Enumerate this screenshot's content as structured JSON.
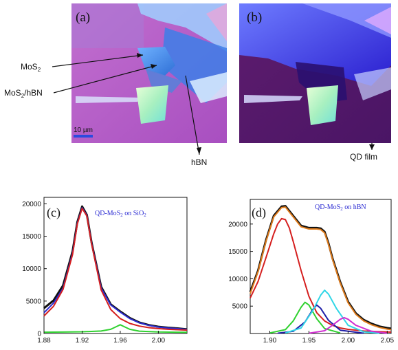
{
  "figure": {
    "panel_a": {
      "label": "(a)",
      "annotations": {
        "mos2": {
          "base": "MoS",
          "sub": "2"
        },
        "mos2_hbn": {
          "base": "MoS",
          "sub": "2",
          "suffix": "/hBN"
        },
        "hbn": "hBN",
        "scalebar": "10 µm"
      }
    },
    "panel_b": {
      "label": "(b)",
      "annotations": {
        "qd_film": "QD film"
      }
    },
    "colors": {
      "substrate_a": "#b75cc6",
      "substrate_b": "#5a1a6a",
      "flake_blue": "#2f6fd6",
      "black_data": "#111111",
      "blue_fit": "#2b2bd2",
      "red_fit": "#d51f1f",
      "green_fit": "#2fd12f",
      "cyan_fit": "#2fd6e6",
      "navy_fit": "#1f1fa8",
      "magenta_fit": "#d12fd1",
      "orange_sum": "#e07b1a"
    }
  },
  "chart_data": [
    {
      "type": "line",
      "panel_label": "(c)",
      "title": {
        "base": "QD-MoS",
        "sub": "2",
        "suffix": " on SiO",
        "sub2": "2"
      },
      "xlabel": "",
      "ylabel": "",
      "xlim": [
        1.88,
        2.03
      ],
      "ylim": [
        0,
        21000
      ],
      "x_ticks": [
        "1.88",
        "1.92",
        "1.96",
        "2.00"
      ],
      "x_tick_values": [
        1.88,
        1.92,
        1.96,
        2.0
      ],
      "y_ticks": [
        "0",
        "5000",
        "10000",
        "15000",
        "20000"
      ],
      "y_tick_values": [
        0,
        5000,
        10000,
        15000,
        20000
      ],
      "series": [
        {
          "color": "#111111",
          "x": [
            1.88,
            1.89,
            1.9,
            1.91,
            1.915,
            1.92,
            1.925,
            1.93,
            1.94,
            1.95,
            1.96,
            1.97,
            1.98,
            1.99,
            2.0,
            2.01,
            2.02,
            2.03
          ],
          "y": [
            3900,
            5100,
            7400,
            12700,
            17200,
            19600,
            18300,
            14000,
            7200,
            4500,
            3400,
            2400,
            1700,
            1300,
            1050,
            900,
            800,
            650
          ]
        },
        {
          "color": "#2b2bd2",
          "x": [
            1.88,
            1.89,
            1.9,
            1.91,
            1.915,
            1.92,
            1.925,
            1.93,
            1.94,
            1.95,
            1.96,
            1.97,
            1.98,
            1.99,
            2.0,
            2.01,
            2.02,
            2.03
          ],
          "y": [
            3200,
            4700,
            7000,
            12400,
            17000,
            19400,
            18200,
            13900,
            7000,
            4400,
            3300,
            2300,
            1650,
            1250,
            1000,
            850,
            750,
            600
          ]
        },
        {
          "color": "#d51f1f",
          "x": [
            1.88,
            1.89,
            1.9,
            1.91,
            1.915,
            1.92,
            1.925,
            1.93,
            1.94,
            1.95,
            1.96,
            1.97,
            1.98,
            1.99,
            2.0,
            2.01,
            2.02,
            2.03
          ],
          "y": [
            2700,
            4200,
            6800,
            12200,
            16900,
            19300,
            18100,
            13800,
            6700,
            3700,
            2300,
            1550,
            1150,
            900,
            750,
            650,
            580,
            520
          ]
        },
        {
          "color": "#2fd12f",
          "x": [
            1.88,
            1.9,
            1.92,
            1.94,
            1.95,
            1.955,
            1.96,
            1.965,
            1.97,
            1.98,
            2.0,
            2.03
          ],
          "y": [
            200,
            220,
            260,
            380,
            650,
            1000,
            1350,
            1000,
            650,
            360,
            230,
            180
          ]
        }
      ]
    },
    {
      "type": "line",
      "panel_label": "(d)",
      "title": {
        "base": "QD-MoS",
        "sub": "2",
        "suffix": " on hBN"
      },
      "xlabel": "",
      "ylabel": "",
      "xlim": [
        1.875,
        2.055
      ],
      "ylim": [
        0,
        24500
      ],
      "x_ticks": [
        "1.90",
        "1.95",
        "2.00",
        "2.05"
      ],
      "x_tick_values": [
        1.9,
        1.95,
        2.0,
        2.05
      ],
      "y_ticks": [
        "5000",
        "10000",
        "15000",
        "20000"
      ],
      "y_tick_values": [
        5000,
        10000,
        15000,
        20000
      ],
      "series": [
        {
          "color": "#111111",
          "x": [
            1.875,
            1.885,
            1.895,
            1.905,
            1.915,
            1.92,
            1.93,
            1.94,
            1.95,
            1.96,
            1.965,
            1.97,
            1.975,
            1.98,
            1.99,
            2.0,
            2.01,
            2.02,
            2.03,
            2.04,
            2.05,
            2.055
          ],
          "y": [
            7600,
            11500,
            17000,
            21500,
            23200,
            23300,
            21500,
            19700,
            19300,
            19300,
            19200,
            18600,
            16500,
            13800,
            9400,
            5800,
            3700,
            2500,
            1800,
            1300,
            1000,
            900
          ]
        },
        {
          "color": "#e07b1a",
          "x": [
            1.875,
            1.885,
            1.895,
            1.905,
            1.915,
            1.92,
            1.93,
            1.94,
            1.95,
            1.96,
            1.965,
            1.97,
            1.975,
            1.98,
            1.99,
            2.0,
            2.01,
            2.02,
            2.03,
            2.04,
            2.05,
            2.055
          ],
          "y": [
            7300,
            11300,
            16800,
            21300,
            23000,
            23100,
            21300,
            19500,
            19100,
            19100,
            19000,
            18400,
            16300,
            13600,
            9200,
            5600,
            3500,
            2300,
            1600,
            1100,
            800,
            700
          ]
        },
        {
          "color": "#d51f1f",
          "x": [
            1.875,
            1.885,
            1.895,
            1.905,
            1.91,
            1.915,
            1.92,
            1.925,
            1.93,
            1.94,
            1.95,
            1.96,
            1.97,
            1.98,
            1.99,
            2.0,
            2.02,
            2.055
          ],
          "y": [
            6500,
            9500,
            13800,
            18200,
            20000,
            21000,
            20800,
            19300,
            16800,
            11500,
            6800,
            3800,
            2300,
            1500,
            1000,
            750,
            450,
            250
          ]
        },
        {
          "color": "#2fd12f",
          "x": [
            1.9,
            1.92,
            1.93,
            1.94,
            1.945,
            1.95,
            1.96,
            1.97,
            1.99
          ],
          "y": [
            100,
            700,
            2300,
            4800,
            5700,
            5200,
            2700,
            900,
            100
          ]
        },
        {
          "color": "#1f1fa8",
          "x": [
            1.91,
            1.93,
            1.945,
            1.955,
            1.96,
            1.965,
            1.975,
            1.99,
            2.02
          ],
          "y": [
            50,
            400,
            2100,
            4400,
            5200,
            4600,
            2400,
            600,
            50
          ]
        },
        {
          "color": "#2fd6e6",
          "x": [
            1.92,
            1.94,
            1.955,
            1.965,
            1.97,
            1.975,
            1.985,
            2.0,
            2.02,
            2.04
          ],
          "y": [
            100,
            1000,
            4200,
            7000,
            7900,
            7200,
            4600,
            1500,
            300,
            50
          ]
        },
        {
          "color": "#d12fd1",
          "x": [
            1.95,
            1.97,
            1.98,
            1.99,
            1.995,
            2.0,
            2.01,
            2.03,
            2.05
          ],
          "y": [
            50,
            500,
            1500,
            2600,
            2900,
            2600,
            1500,
            400,
            50
          ]
        }
      ]
    }
  ]
}
